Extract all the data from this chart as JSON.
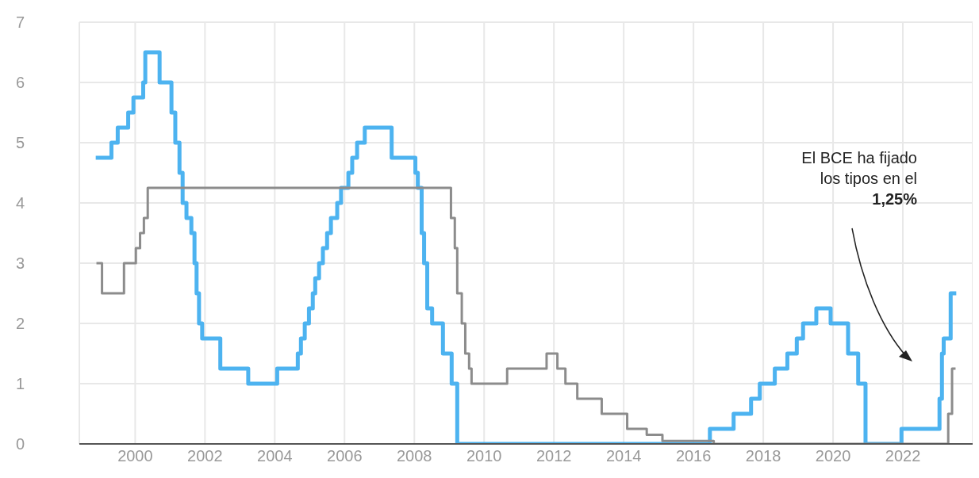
{
  "chart_data": {
    "type": "step",
    "xlim": [
      1998.4,
      2024
    ],
    "xticks": [
      2000,
      2002,
      2004,
      2006,
      2008,
      2010,
      2012,
      2014,
      2016,
      2018,
      2020,
      2022
    ],
    "ylim": [
      0,
      7
    ],
    "yticks": [
      0,
      1,
      2,
      3,
      4,
      5,
      6,
      7
    ],
    "grid": true,
    "marker": "none",
    "line_style": "solid",
    "series": [
      {
        "color": "#4db3f0",
        "x": [
          1998.87,
          1999.32,
          1999.5,
          1999.8,
          1999.95,
          2000.23,
          2000.29,
          2000.7,
          2001.04,
          2001.15,
          2001.27,
          2001.36,
          2001.47,
          2001.61,
          2001.7,
          2001.76,
          2001.83,
          2001.92,
          2002.44,
          2003.24,
          2004.07,
          2004.66,
          2004.75,
          2004.86,
          2004.98,
          2005.09,
          2005.16,
          2005.27,
          2005.38,
          2005.5,
          2005.61,
          2005.79,
          2005.9,
          2006.11,
          2006.22,
          2006.36,
          2006.58,
          2007.35,
          2008.03,
          2008.1,
          2008.21,
          2008.28,
          2008.37,
          2008.51,
          2008.82,
          2009.07,
          2009.23,
          2016.47,
          2017.15,
          2017.65,
          2017.9,
          2018.33,
          2018.69,
          2018.96,
          2019.14,
          2019.52,
          2019.93,
          2020.43,
          2020.72,
          2020.93,
          2021.96,
          2023.05,
          2023.12,
          2023.17,
          2023.37,
          2023.53
        ],
        "values": [
          4.75,
          5,
          5.25,
          5.5,
          5.75,
          6,
          6.5,
          6,
          5.5,
          5,
          4.5,
          4,
          3.75,
          3.5,
          3,
          2.5,
          2,
          1.75,
          1.25,
          1,
          1.25,
          1.5,
          1.75,
          2,
          2.25,
          2.5,
          2.75,
          3,
          3.25,
          3.5,
          3.75,
          4,
          4.25,
          4.5,
          4.75,
          5,
          5.25,
          4.75,
          4.5,
          4.25,
          3.5,
          3,
          2.25,
          2,
          1.5,
          1,
          0,
          0.25,
          0.5,
          0.75,
          1,
          1.25,
          1.5,
          1.75,
          2,
          2.25,
          2,
          1.5,
          1,
          0,
          0.25,
          0.75,
          1.5,
          1.75,
          2.5,
          2.5
        ]
      },
      {
        "color": "#8c8c8c",
        "x": [
          1998.89,
          1999.05,
          1999.68,
          2000.02,
          2000.14,
          2000.25,
          2000.36,
          2009.05,
          2009.16,
          2009.23,
          2009.36,
          2009.46,
          2009.57,
          2009.64,
          2010.66,
          2011.79,
          2012.1,
          2012.33,
          2012.67,
          2013.37,
          2014.1,
          2014.66,
          2015.11,
          2016.58,
          2023.3,
          2023.41,
          2023.51
        ],
        "values": [
          3,
          2.5,
          3,
          3.25,
          3.5,
          3.75,
          4.25,
          3.75,
          3.25,
          2.5,
          2,
          1.5,
          1.25,
          1,
          1.25,
          1.5,
          1.25,
          1,
          0.75,
          0.5,
          0.25,
          0.15,
          0.05,
          0,
          0.5,
          1.25,
          1.25
        ]
      }
    ],
    "annotations": [
      "El BCE ha fijado\nlos tipos en el\n1,25%"
    ]
  }
}
